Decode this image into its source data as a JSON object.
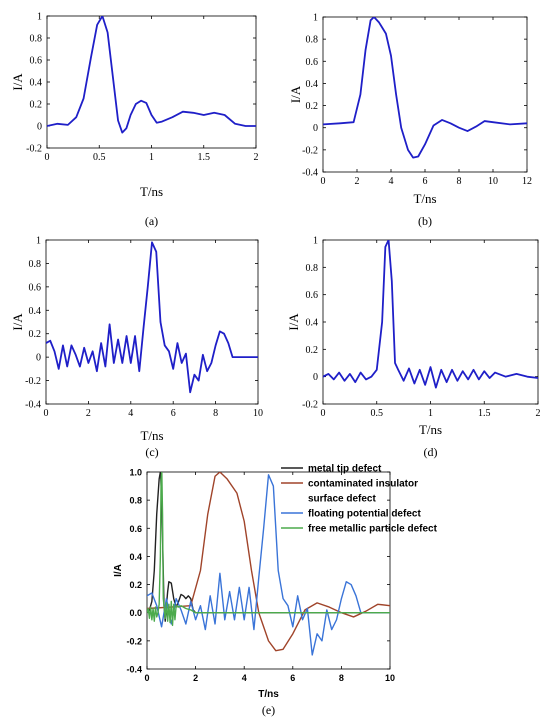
{
  "chart_data": [
    {
      "panel": "(a)",
      "type": "line",
      "xlabel": "T/ns",
      "ylabel": "I/A",
      "xlim": [
        0,
        2
      ],
      "ylim": [
        -0.2,
        1
      ],
      "xticks": [
        0,
        0.5,
        1,
        1.5,
        2
      ],
      "xtick_labels": [
        "0",
        "0.5",
        "1",
        "1.5",
        "2"
      ],
      "yticks": [
        -0.2,
        0,
        0.2,
        0.4,
        0.6,
        0.8,
        1
      ],
      "ytick_labels": [
        "-0.2",
        "0",
        "0.2",
        "0.4",
        "0.6",
        "0.8",
        "1"
      ],
      "grid": false,
      "series": [
        {
          "color": "#1f1fc8",
          "x": [
            0,
            0.1,
            0.2,
            0.28,
            0.35,
            0.42,
            0.48,
            0.53,
            0.58,
            0.63,
            0.68,
            0.72,
            0.76,
            0.8,
            0.85,
            0.9,
            0.95,
            1.0,
            1.05,
            1.1,
            1.2,
            1.3,
            1.4,
            1.5,
            1.6,
            1.7,
            1.8,
            1.9,
            2.0
          ],
          "y": [
            0.0,
            0.02,
            0.01,
            0.08,
            0.25,
            0.62,
            0.92,
            1.0,
            0.85,
            0.45,
            0.05,
            -0.06,
            -0.02,
            0.1,
            0.2,
            0.23,
            0.21,
            0.1,
            0.03,
            0.04,
            0.08,
            0.13,
            0.12,
            0.1,
            0.12,
            0.1,
            0.02,
            0.0,
            0.0
          ]
        }
      ]
    },
    {
      "panel": "(b)",
      "type": "line",
      "xlabel": "T/ns",
      "ylabel": "I/A",
      "xlim": [
        0,
        12
      ],
      "ylim": [
        -0.4,
        1
      ],
      "xticks": [
        0,
        2,
        4,
        6,
        8,
        10,
        12
      ],
      "xtick_labels": [
        "0",
        "2",
        "4",
        "6",
        "8",
        "10",
        "12"
      ],
      "yticks": [
        -0.4,
        -0.2,
        0,
        0.2,
        0.4,
        0.6,
        0.8,
        1
      ],
      "ytick_labels": [
        "-0.4",
        "-0.2",
        "0",
        "0.2",
        "0.4",
        "0.6",
        "0.8",
        "1"
      ],
      "grid": false,
      "series": [
        {
          "color": "#1f1fc8",
          "x": [
            0,
            1,
            1.8,
            2.2,
            2.5,
            2.8,
            3.0,
            3.3,
            3.7,
            4.0,
            4.3,
            4.6,
            5.0,
            5.3,
            5.6,
            6.0,
            6.5,
            7.0,
            7.5,
            8.0,
            8.5,
            9.0,
            9.5,
            10,
            11,
            12
          ],
          "y": [
            0.03,
            0.04,
            0.05,
            0.3,
            0.7,
            0.97,
            1.0,
            0.95,
            0.85,
            0.65,
            0.3,
            0.0,
            -0.2,
            -0.27,
            -0.26,
            -0.15,
            0.02,
            0.07,
            0.04,
            0.0,
            -0.03,
            0.01,
            0.06,
            0.05,
            0.03,
            0.04
          ]
        }
      ]
    },
    {
      "panel": "(c)",
      "type": "line",
      "xlabel": "T/ns",
      "ylabel": "I/A",
      "xlim": [
        0,
        10
      ],
      "ylim": [
        -0.4,
        1
      ],
      "xticks": [
        0,
        2,
        4,
        6,
        8,
        10
      ],
      "xtick_labels": [
        "0",
        "2",
        "4",
        "6",
        "8",
        "10"
      ],
      "yticks": [
        -0.4,
        -0.2,
        0,
        0.2,
        0.4,
        0.6,
        0.8,
        1
      ],
      "ytick_labels": [
        "-0.4",
        "-0.2",
        "0",
        "0.2",
        "0.4",
        "0.6",
        "0.8",
        "1"
      ],
      "grid": false,
      "series": [
        {
          "color": "#1f1fc8",
          "x": [
            0,
            0.2,
            0.4,
            0.6,
            0.8,
            1.0,
            1.2,
            1.4,
            1.6,
            1.8,
            2.0,
            2.2,
            2.4,
            2.6,
            2.8,
            3.0,
            3.2,
            3.4,
            3.6,
            3.8,
            4.0,
            4.2,
            4.4,
            4.6,
            4.8,
            5.0,
            5.2,
            5.4,
            5.6,
            5.8,
            6.0,
            6.2,
            6.4,
            6.6,
            6.8,
            7.0,
            7.2,
            7.4,
            7.6,
            7.8,
            8.0,
            8.2,
            8.4,
            8.6,
            8.8,
            9.0,
            9.5,
            10.0
          ],
          "y": [
            0.12,
            0.14,
            0.05,
            -0.1,
            0.1,
            -0.08,
            0.1,
            0.02,
            -0.08,
            0.08,
            -0.05,
            0.05,
            -0.12,
            0.12,
            -0.08,
            0.28,
            -0.05,
            0.15,
            -0.05,
            0.18,
            -0.05,
            0.18,
            -0.12,
            0.25,
            0.6,
            0.98,
            0.9,
            0.3,
            0.1,
            0.05,
            -0.1,
            0.12,
            -0.05,
            0.03,
            -0.3,
            -0.15,
            -0.2,
            0.02,
            -0.12,
            -0.05,
            0.1,
            0.22,
            0.2,
            0.12,
            0.0,
            0.0,
            0.0,
            0.0
          ]
        }
      ]
    },
    {
      "panel": "(d)",
      "type": "line",
      "xlabel": "T/ns",
      "ylabel": "I/A",
      "xlim": [
        0,
        2
      ],
      "ylim": [
        -0.2,
        1
      ],
      "xticks": [
        0,
        0.5,
        1,
        1.5,
        2
      ],
      "xtick_labels": [
        "0",
        "0.5",
        "1",
        "1.5",
        "2"
      ],
      "yticks": [
        -0.2,
        0,
        0.2,
        0.4,
        0.6,
        0.8,
        1
      ],
      "ytick_labels": [
        "-0.2",
        "0",
        "0.2",
        "0.4",
        "0.6",
        "0.8",
        "1"
      ],
      "grid": false,
      "series": [
        {
          "color": "#1f1fc8",
          "x": [
            0,
            0.05,
            0.1,
            0.15,
            0.2,
            0.25,
            0.3,
            0.35,
            0.4,
            0.45,
            0.5,
            0.55,
            0.58,
            0.61,
            0.64,
            0.67,
            0.7,
            0.75,
            0.8,
            0.85,
            0.9,
            0.95,
            1.0,
            1.05,
            1.1,
            1.15,
            1.2,
            1.25,
            1.3,
            1.35,
            1.4,
            1.45,
            1.5,
            1.55,
            1.6,
            1.7,
            1.8,
            1.9,
            2.0
          ],
          "y": [
            0.0,
            0.02,
            -0.02,
            0.03,
            -0.03,
            0.02,
            -0.04,
            0.03,
            -0.02,
            0.0,
            0.05,
            0.4,
            0.95,
            1.0,
            0.7,
            0.1,
            0.05,
            -0.03,
            0.06,
            -0.05,
            0.05,
            -0.06,
            0.07,
            -0.08,
            0.05,
            -0.04,
            0.05,
            -0.03,
            0.04,
            -0.02,
            0.05,
            -0.02,
            0.04,
            -0.01,
            0.03,
            0.0,
            0.02,
            0.0,
            -0.01
          ]
        }
      ]
    },
    {
      "panel": "(e)",
      "type": "line",
      "xlabel": "T/ns",
      "ylabel": "I/A",
      "xlim": [
        0,
        10
      ],
      "ylim": [
        -0.4,
        1.0
      ],
      "xticks": [
        0,
        2,
        4,
        6,
        8,
        10
      ],
      "xtick_labels": [
        "0",
        "2",
        "4",
        "6",
        "8",
        "10"
      ],
      "yticks": [
        -0.4,
        -0.2,
        0.0,
        0.2,
        0.4,
        0.6,
        0.8,
        1.0
      ],
      "ytick_labels": [
        "-0.4",
        "-0.2",
        "0.0",
        "0.2",
        "0.4",
        "0.6",
        "0.8",
        "1.0"
      ],
      "grid": false,
      "legend_position": "top-right",
      "series": [
        {
          "name": "metal tip defect",
          "color": "#222222",
          "x": [
            0,
            0.1,
            0.2,
            0.3,
            0.4,
            0.5,
            0.55,
            0.6,
            0.65,
            0.7,
            0.75,
            0.8,
            0.85,
            0.9,
            1.0,
            1.1,
            1.2,
            1.3,
            1.4,
            1.5,
            1.6,
            1.7,
            1.8,
            1.9,
            2.0,
            10.0
          ],
          "y": [
            0.0,
            0.02,
            0.08,
            0.3,
            0.7,
            0.95,
            1.0,
            0.85,
            0.45,
            0.05,
            -0.06,
            0.05,
            0.15,
            0.22,
            0.21,
            0.1,
            0.04,
            0.08,
            0.13,
            0.12,
            0.1,
            0.12,
            0.1,
            0.02,
            0.0,
            0.0
          ]
        },
        {
          "name": "contaminated insulator surface defect",
          "color": "#a0442a",
          "x": [
            0,
            1,
            1.8,
            2.2,
            2.5,
            2.8,
            3.0,
            3.3,
            3.7,
            4.0,
            4.3,
            4.6,
            5.0,
            5.3,
            5.6,
            6.0,
            6.5,
            7.0,
            7.5,
            8.0,
            8.5,
            9.0,
            9.5,
            10
          ],
          "y": [
            0.03,
            0.04,
            0.05,
            0.3,
            0.7,
            0.97,
            1.0,
            0.95,
            0.85,
            0.65,
            0.3,
            0.0,
            -0.2,
            -0.27,
            -0.26,
            -0.15,
            0.02,
            0.07,
            0.04,
            0.0,
            -0.03,
            0.01,
            0.06,
            0.05
          ]
        },
        {
          "name": "floating potential defect",
          "color": "#3a74d8",
          "x": [
            0,
            0.2,
            0.4,
            0.6,
            0.8,
            1.0,
            1.2,
            1.4,
            1.6,
            1.8,
            2.0,
            2.2,
            2.4,
            2.6,
            2.8,
            3.0,
            3.2,
            3.4,
            3.6,
            3.8,
            4.0,
            4.2,
            4.4,
            4.6,
            4.8,
            5.0,
            5.2,
            5.4,
            5.6,
            5.8,
            6.0,
            6.2,
            6.4,
            6.6,
            6.8,
            7.0,
            7.2,
            7.4,
            7.6,
            7.8,
            8.0,
            8.2,
            8.4,
            8.6,
            8.8,
            9.0,
            9.5,
            10.0
          ],
          "y": [
            0.12,
            0.14,
            0.05,
            -0.1,
            0.1,
            -0.08,
            0.1,
            0.02,
            -0.08,
            0.08,
            -0.05,
            0.05,
            -0.12,
            0.12,
            -0.08,
            0.28,
            -0.05,
            0.15,
            -0.05,
            0.18,
            -0.05,
            0.18,
            -0.12,
            0.25,
            0.6,
            0.98,
            0.9,
            0.3,
            0.1,
            0.05,
            -0.1,
            0.12,
            -0.05,
            0.03,
            -0.3,
            -0.15,
            -0.2,
            0.02,
            -0.12,
            -0.05,
            0.1,
            0.22,
            0.2,
            0.12,
            0.0,
            0.0,
            0.0,
            0.0
          ]
        },
        {
          "name": "free metallic particle defect",
          "color": "#4caa4c",
          "x": [
            0,
            0.05,
            0.1,
            0.15,
            0.2,
            0.25,
            0.3,
            0.35,
            0.4,
            0.45,
            0.5,
            0.55,
            0.58,
            0.61,
            0.64,
            0.67,
            0.7,
            0.75,
            0.8,
            0.85,
            0.9,
            0.95,
            1.0,
            1.05,
            1.1,
            1.15,
            1.2,
            1.3,
            1.4,
            1.5,
            1.6,
            1.8,
            2.0,
            10.0
          ],
          "y": [
            0.0,
            0.03,
            -0.04,
            0.04,
            -0.05,
            0.03,
            -0.06,
            0.04,
            -0.03,
            0.0,
            0.06,
            0.4,
            0.95,
            1.0,
            0.7,
            0.1,
            0.05,
            -0.04,
            0.07,
            -0.06,
            0.06,
            -0.07,
            0.08,
            -0.09,
            0.06,
            -0.05,
            0.05,
            0.04,
            0.05,
            0.04,
            0.03,
            0.02,
            0.0,
            0.0
          ]
        }
      ]
    }
  ]
}
